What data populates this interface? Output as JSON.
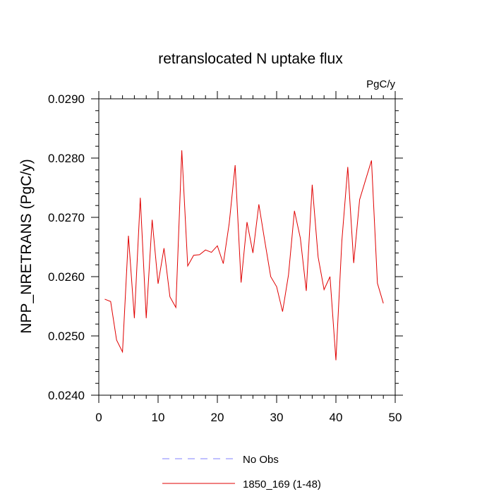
{
  "chart_data": {
    "type": "line",
    "title": "retranslocated N uptake flux",
    "units": "PgC/y",
    "xlabel": "",
    "ylabel": "NPP_NRETRANS  (PgC/y)",
    "xlim": [
      0,
      50
    ],
    "ylim": [
      0.024,
      0.029
    ],
    "x_ticks": [
      0,
      10,
      20,
      30,
      40,
      50
    ],
    "x_tick_labels": [
      "0",
      "10",
      "20",
      "30",
      "40",
      "50"
    ],
    "y_ticks": [
      0.024,
      0.025,
      0.026,
      0.027,
      0.028,
      0.029
    ],
    "y_tick_labels": [
      "0.0240",
      "0.0250",
      "0.0260",
      "0.0270",
      "0.0280",
      "0.0290"
    ],
    "grid": false,
    "legend_position": "bottom",
    "legend": [
      {
        "label": "No Obs",
        "color": "#8080ff",
        "style": "dashed"
      },
      {
        "label": "1850_169 (1-48)",
        "color": "#e00000",
        "style": "solid"
      }
    ],
    "series": [
      {
        "name": "1850_169 (1-48)",
        "color": "#e00000",
        "x": [
          1,
          2,
          3,
          4,
          5,
          6,
          7,
          8,
          9,
          10,
          11,
          12,
          13,
          14,
          15,
          16,
          17,
          18,
          19,
          20,
          21,
          22,
          23,
          24,
          25,
          26,
          27,
          28,
          29,
          30,
          31,
          32,
          33,
          34,
          35,
          36,
          37,
          38,
          39,
          40,
          41,
          42,
          43,
          44,
          45,
          46,
          47,
          48
        ],
        "y": [
          0.02562,
          0.02558,
          0.02493,
          0.02473,
          0.02669,
          0.0253,
          0.02733,
          0.0253,
          0.02696,
          0.02588,
          0.02648,
          0.02566,
          0.02548,
          0.02813,
          0.02618,
          0.02636,
          0.02637,
          0.02645,
          0.02641,
          0.02652,
          0.02622,
          0.0269,
          0.02788,
          0.0259,
          0.02692,
          0.0264,
          0.02722,
          0.0266,
          0.026,
          0.02583,
          0.02541,
          0.02603,
          0.02711,
          0.02665,
          0.02576,
          0.02755,
          0.02633,
          0.02578,
          0.026,
          0.02459,
          0.0266,
          0.02785,
          0.02623,
          0.0273,
          0.02763,
          0.02796,
          0.02589,
          0.02555
        ]
      }
    ]
  }
}
